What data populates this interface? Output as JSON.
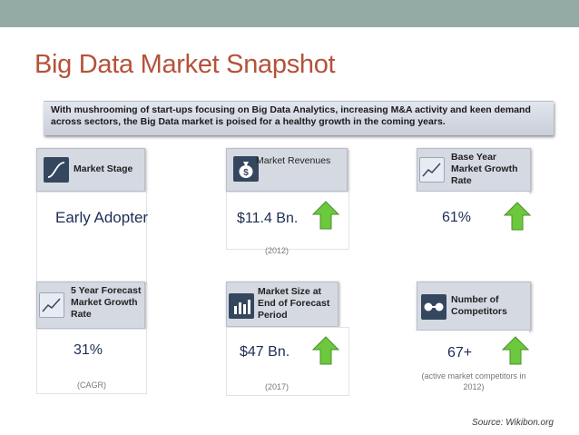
{
  "title": "Big Data Market Snapshot",
  "banner_text": "With mushrooming of start-ups focusing on Big Data Analytics, increasing M&A activity and keen demand across sectors, the Big Data market is poised for a healthy growth in the coming years.",
  "cards": {
    "market_stage": {
      "label": "Market Stage",
      "value": "Early Adopter",
      "icon": "s-curve-icon"
    },
    "market_revenues": {
      "label": "Market Revenues",
      "value": "$11.4 Bn.",
      "note": "(2012)",
      "icon": "money-bag-icon",
      "trend": "up"
    },
    "base_year_growth": {
      "label": "Base Year Market Growth Rate",
      "value": "61%",
      "icon": "line-chart-icon",
      "trend": "up"
    },
    "forecast_growth": {
      "label": "5 Year Forecast Market Growth Rate",
      "value": "31%",
      "note": "(CAGR)",
      "icon": "line-chart-icon"
    },
    "market_size_forecast": {
      "label": "Market Size at End of Forecast Period",
      "value": "$47 Bn.",
      "note": "(2017)",
      "icon": "bar-chart-icon",
      "trend": "up"
    },
    "competitors": {
      "label": "Number of Competitors",
      "value": "67+",
      "note": "(active market competitors in 2012)",
      "icon": "competitors-icon",
      "trend": "up"
    }
  },
  "colors": {
    "title": "#b5523a",
    "topbar": "#94aaa5",
    "icon_bg": "#35475e",
    "arrow": "#6cc83c",
    "value": "#1e2d55"
  },
  "source": "Source: Wikibon.org"
}
